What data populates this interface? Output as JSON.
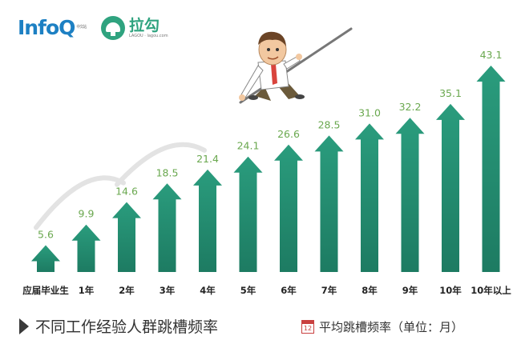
{
  "logos": {
    "infoq": "InfoQ",
    "infoq_sup": "中文站",
    "lagou": "拉勾",
    "lagou_sub": "LAGOU · lagou.com"
  },
  "footer": {
    "title": "不同工作经验人群跳槽频率",
    "legend_icon_text": "12",
    "unit_label": "平均跳槽频率（单位：月）"
  },
  "colors": {
    "arrow": "#2a9c7d",
    "arrow_dark": "#1d7b62",
    "value_text": "#6aa84f",
    "category_text": "#222222"
  },
  "chart_data": {
    "type": "bar",
    "categories": [
      "应届毕业生",
      "1年",
      "2年",
      "3年",
      "4年",
      "5年",
      "6年",
      "7年",
      "8年",
      "9年",
      "10年",
      "10年以上"
    ],
    "values": [
      5.6,
      9.9,
      14.6,
      18.5,
      21.4,
      24.1,
      26.6,
      28.5,
      31.0,
      32.2,
      35.1,
      43.1
    ],
    "value_labels": [
      "5.6",
      "9.9",
      "14.6",
      "18.5",
      "21.4",
      "24.1",
      "26.6",
      "28.5",
      "31.0",
      "32.2",
      "35.1",
      "43.1"
    ],
    "title": "不同工作经验人群跳槽频率",
    "ylabel": "平均跳槽频率（单位：月）",
    "grid": false
  }
}
